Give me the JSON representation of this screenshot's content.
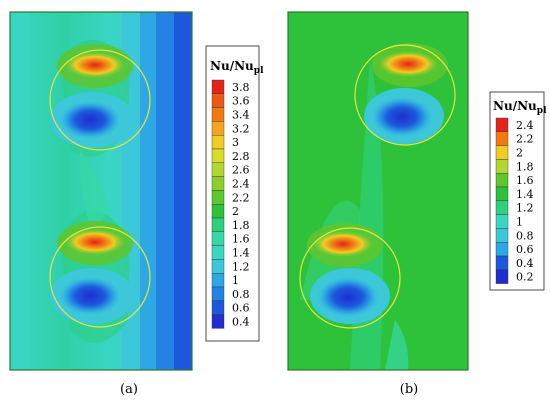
{
  "chart_data": [
    {
      "type": "heatmap",
      "panel_label": "(a)",
      "colorbar": {
        "title_main": "Nu/Nu",
        "title_sub": "pl",
        "levels": [
          "3.8",
          "3.6",
          "3.4",
          "3.2",
          "3",
          "2.8",
          "2.6",
          "2.4",
          "2.2",
          "2",
          "1.8",
          "1.6",
          "1.4",
          "1.2",
          "1",
          "0.8",
          "0.6",
          "0.4"
        ],
        "colors": [
          "#e4221a",
          "#ea5a14",
          "#f07a12",
          "#f4a41e",
          "#f0cc24",
          "#d8dc2a",
          "#b4d630",
          "#8ece2c",
          "#5ec62e",
          "#2ec23a",
          "#2ed07c",
          "#36d8a8",
          "#3ad6c4",
          "#3cc8d8",
          "#2ea8e4",
          "#2482e4",
          "#1c58dc",
          "#1e2ed0"
        ]
      }
    },
    {
      "type": "heatmap",
      "panel_label": "(b)",
      "colorbar": {
        "title_main": "Nu/Nu",
        "title_sub": "pl",
        "levels": [
          "2.4",
          "2.2",
          "2",
          "1.8",
          "1.6",
          "1.4",
          "1.2",
          "1",
          "0.8",
          "0.6",
          "0.4",
          "0.2"
        ],
        "colors": [
          "#e4221a",
          "#f07a12",
          "#f0cc24",
          "#b4d630",
          "#5ec62e",
          "#2ec23a",
          "#2ed07c",
          "#3ad6c4",
          "#3cc8d8",
          "#2ea8e4",
          "#1c58dc",
          "#1e2ed0"
        ]
      }
    }
  ]
}
